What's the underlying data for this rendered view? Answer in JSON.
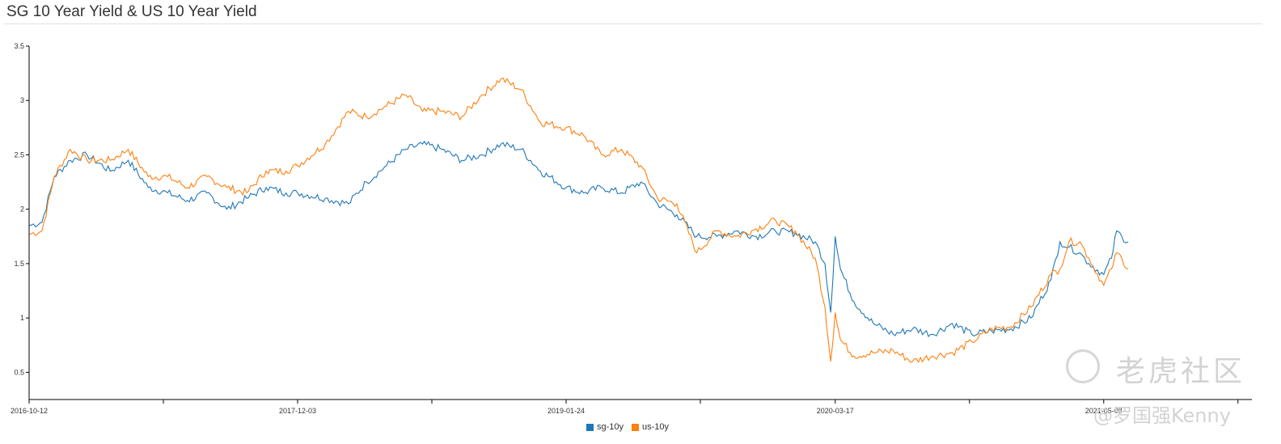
{
  "header": {
    "title": "SG 10 Year Yield & US 10 Year Yield"
  },
  "watermark": {
    "brand": "老虎社区",
    "user": "@罗国强Kenny"
  },
  "colors": {
    "sg": "#1f77b4",
    "us": "#ff7f0e",
    "axis": "#000000"
  },
  "chart_data": {
    "type": "line",
    "title": "SG 10 Year Yield & US 10 Year Yield",
    "x_ticks": [
      "2016-10-12",
      "2017-12-03",
      "2019-01-24",
      "2020-03-17",
      "2021-05-08"
    ],
    "x_range": [
      "2016-10-12",
      "2021-06-15"
    ],
    "ylim": [
      0.25,
      3.5
    ],
    "y_ticks": [
      0.5,
      1,
      1.5,
      2,
      2.5,
      3,
      3.5
    ],
    "legend_position": "bottom-center",
    "grid": false,
    "series": [
      {
        "name": "sg-10y",
        "color": "#1f77b4",
        "points": [
          [
            "2016-10-12",
            1.85
          ],
          [
            "2016-11-01",
            1.88
          ],
          [
            "2016-11-20",
            2.3
          ],
          [
            "2016-12-15",
            2.45
          ],
          [
            "2017-01-10",
            2.5
          ],
          [
            "2017-02-15",
            2.35
          ],
          [
            "2017-03-15",
            2.45
          ],
          [
            "2017-04-15",
            2.2
          ],
          [
            "2017-05-15",
            2.15
          ],
          [
            "2017-06-15",
            2.08
          ],
          [
            "2017-07-15",
            2.15
          ],
          [
            "2017-08-15",
            2.0
          ],
          [
            "2017-09-15",
            2.1
          ],
          [
            "2017-10-15",
            2.2
          ],
          [
            "2017-11-15",
            2.15
          ],
          [
            "2017-12-03",
            2.15
          ],
          [
            "2018-01-15",
            2.1
          ],
          [
            "2018-02-20",
            2.05
          ],
          [
            "2018-03-20",
            2.25
          ],
          [
            "2018-04-20",
            2.4
          ],
          [
            "2018-05-20",
            2.55
          ],
          [
            "2018-06-15",
            2.6
          ],
          [
            "2018-07-15",
            2.55
          ],
          [
            "2018-08-15",
            2.45
          ],
          [
            "2018-09-15",
            2.5
          ],
          [
            "2018-10-15",
            2.6
          ],
          [
            "2018-11-15",
            2.55
          ],
          [
            "2018-12-15",
            2.35
          ],
          [
            "2019-01-24",
            2.2
          ],
          [
            "2019-02-20",
            2.15
          ],
          [
            "2019-03-20",
            2.2
          ],
          [
            "2019-04-20",
            2.15
          ],
          [
            "2019-05-20",
            2.25
          ],
          [
            "2019-06-15",
            2.05
          ],
          [
            "2019-07-15",
            1.95
          ],
          [
            "2019-08-15",
            1.75
          ],
          [
            "2019-09-15",
            1.75
          ],
          [
            "2019-10-15",
            1.8
          ],
          [
            "2019-11-15",
            1.75
          ],
          [
            "2019-12-15",
            1.8
          ],
          [
            "2020-01-15",
            1.78
          ],
          [
            "2020-02-15",
            1.7
          ],
          [
            "2020-03-01",
            1.5
          ],
          [
            "2020-03-10",
            1.05
          ],
          [
            "2020-03-17",
            1.75
          ],
          [
            "2020-03-25",
            1.45
          ],
          [
            "2020-04-15",
            1.15
          ],
          [
            "2020-05-15",
            0.95
          ],
          [
            "2020-06-15",
            0.85
          ],
          [
            "2020-07-15",
            0.9
          ],
          [
            "2020-08-15",
            0.85
          ],
          [
            "2020-09-15",
            0.95
          ],
          [
            "2020-10-15",
            0.85
          ],
          [
            "2020-11-15",
            0.88
          ],
          [
            "2020-12-15",
            0.9
          ],
          [
            "2021-01-15",
            1.0
          ],
          [
            "2021-02-15",
            1.35
          ],
          [
            "2021-03-01",
            1.7
          ],
          [
            "2021-03-15",
            1.65
          ],
          [
            "2021-04-01",
            1.6
          ],
          [
            "2021-04-15",
            1.5
          ],
          [
            "2021-05-08",
            1.4
          ],
          [
            "2021-05-20",
            1.55
          ],
          [
            "2021-05-28",
            1.8
          ],
          [
            "2021-06-05",
            1.75
          ],
          [
            "2021-06-15",
            1.7
          ]
        ]
      },
      {
        "name": "us-10y",
        "color": "#ff7f0e",
        "points": [
          [
            "2016-10-12",
            1.77
          ],
          [
            "2016-11-01",
            1.8
          ],
          [
            "2016-11-20",
            2.3
          ],
          [
            "2016-12-15",
            2.55
          ],
          [
            "2017-01-10",
            2.45
          ],
          [
            "2017-02-15",
            2.45
          ],
          [
            "2017-03-15",
            2.55
          ],
          [
            "2017-04-15",
            2.3
          ],
          [
            "2017-05-15",
            2.3
          ],
          [
            "2017-06-15",
            2.2
          ],
          [
            "2017-07-15",
            2.3
          ],
          [
            "2017-08-15",
            2.2
          ],
          [
            "2017-09-15",
            2.15
          ],
          [
            "2017-10-15",
            2.35
          ],
          [
            "2017-11-15",
            2.35
          ],
          [
            "2017-12-03",
            2.4
          ],
          [
            "2018-01-15",
            2.6
          ],
          [
            "2018-02-20",
            2.9
          ],
          [
            "2018-03-20",
            2.85
          ],
          [
            "2018-04-20",
            2.95
          ],
          [
            "2018-05-20",
            3.05
          ],
          [
            "2018-06-15",
            2.9
          ],
          [
            "2018-07-15",
            2.9
          ],
          [
            "2018-08-15",
            2.85
          ],
          [
            "2018-09-15",
            3.05
          ],
          [
            "2018-10-15",
            3.2
          ],
          [
            "2018-11-15",
            3.1
          ],
          [
            "2018-12-15",
            2.8
          ],
          [
            "2019-01-24",
            2.75
          ],
          [
            "2019-02-20",
            2.68
          ],
          [
            "2019-03-20",
            2.5
          ],
          [
            "2019-04-20",
            2.55
          ],
          [
            "2019-05-20",
            2.4
          ],
          [
            "2019-06-15",
            2.1
          ],
          [
            "2019-07-15",
            2.05
          ],
          [
            "2019-08-15",
            1.6
          ],
          [
            "2019-09-15",
            1.8
          ],
          [
            "2019-10-15",
            1.75
          ],
          [
            "2019-11-15",
            1.82
          ],
          [
            "2019-12-15",
            1.9
          ],
          [
            "2020-01-15",
            1.8
          ],
          [
            "2020-02-15",
            1.55
          ],
          [
            "2020-03-01",
            1.1
          ],
          [
            "2020-03-10",
            0.6
          ],
          [
            "2020-03-17",
            1.05
          ],
          [
            "2020-03-25",
            0.8
          ],
          [
            "2020-04-15",
            0.65
          ],
          [
            "2020-05-15",
            0.68
          ],
          [
            "2020-06-15",
            0.7
          ],
          [
            "2020-07-15",
            0.6
          ],
          [
            "2020-08-15",
            0.65
          ],
          [
            "2020-09-15",
            0.68
          ],
          [
            "2020-10-15",
            0.78
          ],
          [
            "2020-11-15",
            0.9
          ],
          [
            "2020-12-15",
            0.92
          ],
          [
            "2021-01-15",
            1.1
          ],
          [
            "2021-02-15",
            1.4
          ],
          [
            "2021-03-01",
            1.45
          ],
          [
            "2021-03-15",
            1.7
          ],
          [
            "2021-04-01",
            1.7
          ],
          [
            "2021-04-15",
            1.55
          ],
          [
            "2021-05-08",
            1.3
          ],
          [
            "2021-05-20",
            1.45
          ],
          [
            "2021-05-28",
            1.6
          ],
          [
            "2021-06-05",
            1.55
          ],
          [
            "2021-06-15",
            1.45
          ]
        ]
      }
    ]
  }
}
